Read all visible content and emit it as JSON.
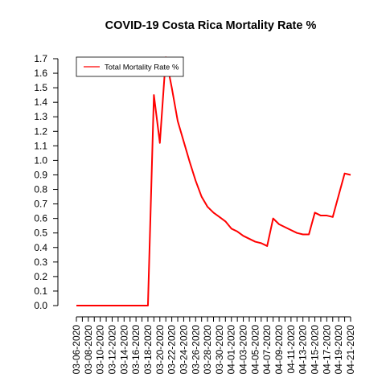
{
  "chart_data": {
    "type": "line",
    "title": "COVID-19 Costa Rica Mortality Rate %",
    "xlabel": "",
    "ylabel": "",
    "ylim": [
      0,
      1.7
    ],
    "grid": false,
    "legend_position": "top-left",
    "y_ticks": [
      0.0,
      0.1,
      0.2,
      0.3,
      0.4,
      0.5,
      0.6,
      0.7,
      0.8,
      0.9,
      1.0,
      1.1,
      1.2,
      1.3,
      1.4,
      1.5,
      1.6,
      1.7
    ],
    "y_tick_labels": [
      "0.0",
      "0.1",
      "0.2",
      "0.3",
      "0.4",
      "0.5",
      "0.6",
      "0.7",
      "0.8",
      "0.9",
      "1.0",
      "1.1",
      "1.2",
      "1.3",
      "1.4",
      "1.5",
      "1.6",
      "1.7"
    ],
    "x": [
      "03-06-2020",
      "03-07-2020",
      "03-08-2020",
      "03-09-2020",
      "03-10-2020",
      "03-11-2020",
      "03-12-2020",
      "03-13-2020",
      "03-14-2020",
      "03-15-2020",
      "03-16-2020",
      "03-17-2020",
      "03-18-2020",
      "03-19-2020",
      "03-20-2020",
      "03-21-2020",
      "03-22-2020",
      "03-23-2020",
      "03-24-2020",
      "03-25-2020",
      "03-26-2020",
      "03-27-2020",
      "03-28-2020",
      "03-29-2020",
      "03-30-2020",
      "03-31-2020",
      "04-01-2020",
      "04-02-2020",
      "04-03-2020",
      "04-04-2020",
      "04-05-2020",
      "04-06-2020",
      "04-07-2020",
      "04-08-2020",
      "04-09-2020",
      "04-10-2020",
      "04-11-2020",
      "04-12-2020",
      "04-13-2020",
      "04-14-2020",
      "04-15-2020",
      "04-16-2020",
      "04-17-2020",
      "04-18-2020",
      "04-19-2020",
      "04-20-2020",
      "04-21-2020"
    ],
    "x_tick_labels": [
      "03-06-2020",
      "03-08-2020",
      "03-10-2020",
      "03-12-2020",
      "03-14-2020",
      "03-16-2020",
      "03-18-2020",
      "03-20-2020",
      "03-22-2020",
      "03-24-2020",
      "03-26-2020",
      "03-28-2020",
      "03-30-2020",
      "04-01-2020",
      "04-03-2020",
      "04-05-2020",
      "04-07-2020",
      "04-09-2020",
      "04-11-2020",
      "04-13-2020",
      "04-15-2020",
      "04-17-2020",
      "04-19-2020",
      "04-21-2020"
    ],
    "series": [
      {
        "name": "Total Mortality Rate %",
        "color": "#ff0000",
        "values": [
          0,
          0,
          0,
          0,
          0,
          0,
          0,
          0,
          0,
          0,
          0,
          0,
          0,
          1.45,
          1.12,
          1.71,
          1.5,
          1.27,
          1.13,
          0.99,
          0.86,
          0.75,
          0.68,
          0.64,
          0.61,
          0.58,
          0.53,
          0.51,
          0.48,
          0.46,
          0.44,
          0.43,
          0.41,
          0.6,
          0.56,
          0.54,
          0.52,
          0.5,
          0.49,
          0.49,
          0.64,
          0.62,
          0.62,
          0.61,
          0.76,
          0.91,
          0.9
        ]
      }
    ]
  }
}
